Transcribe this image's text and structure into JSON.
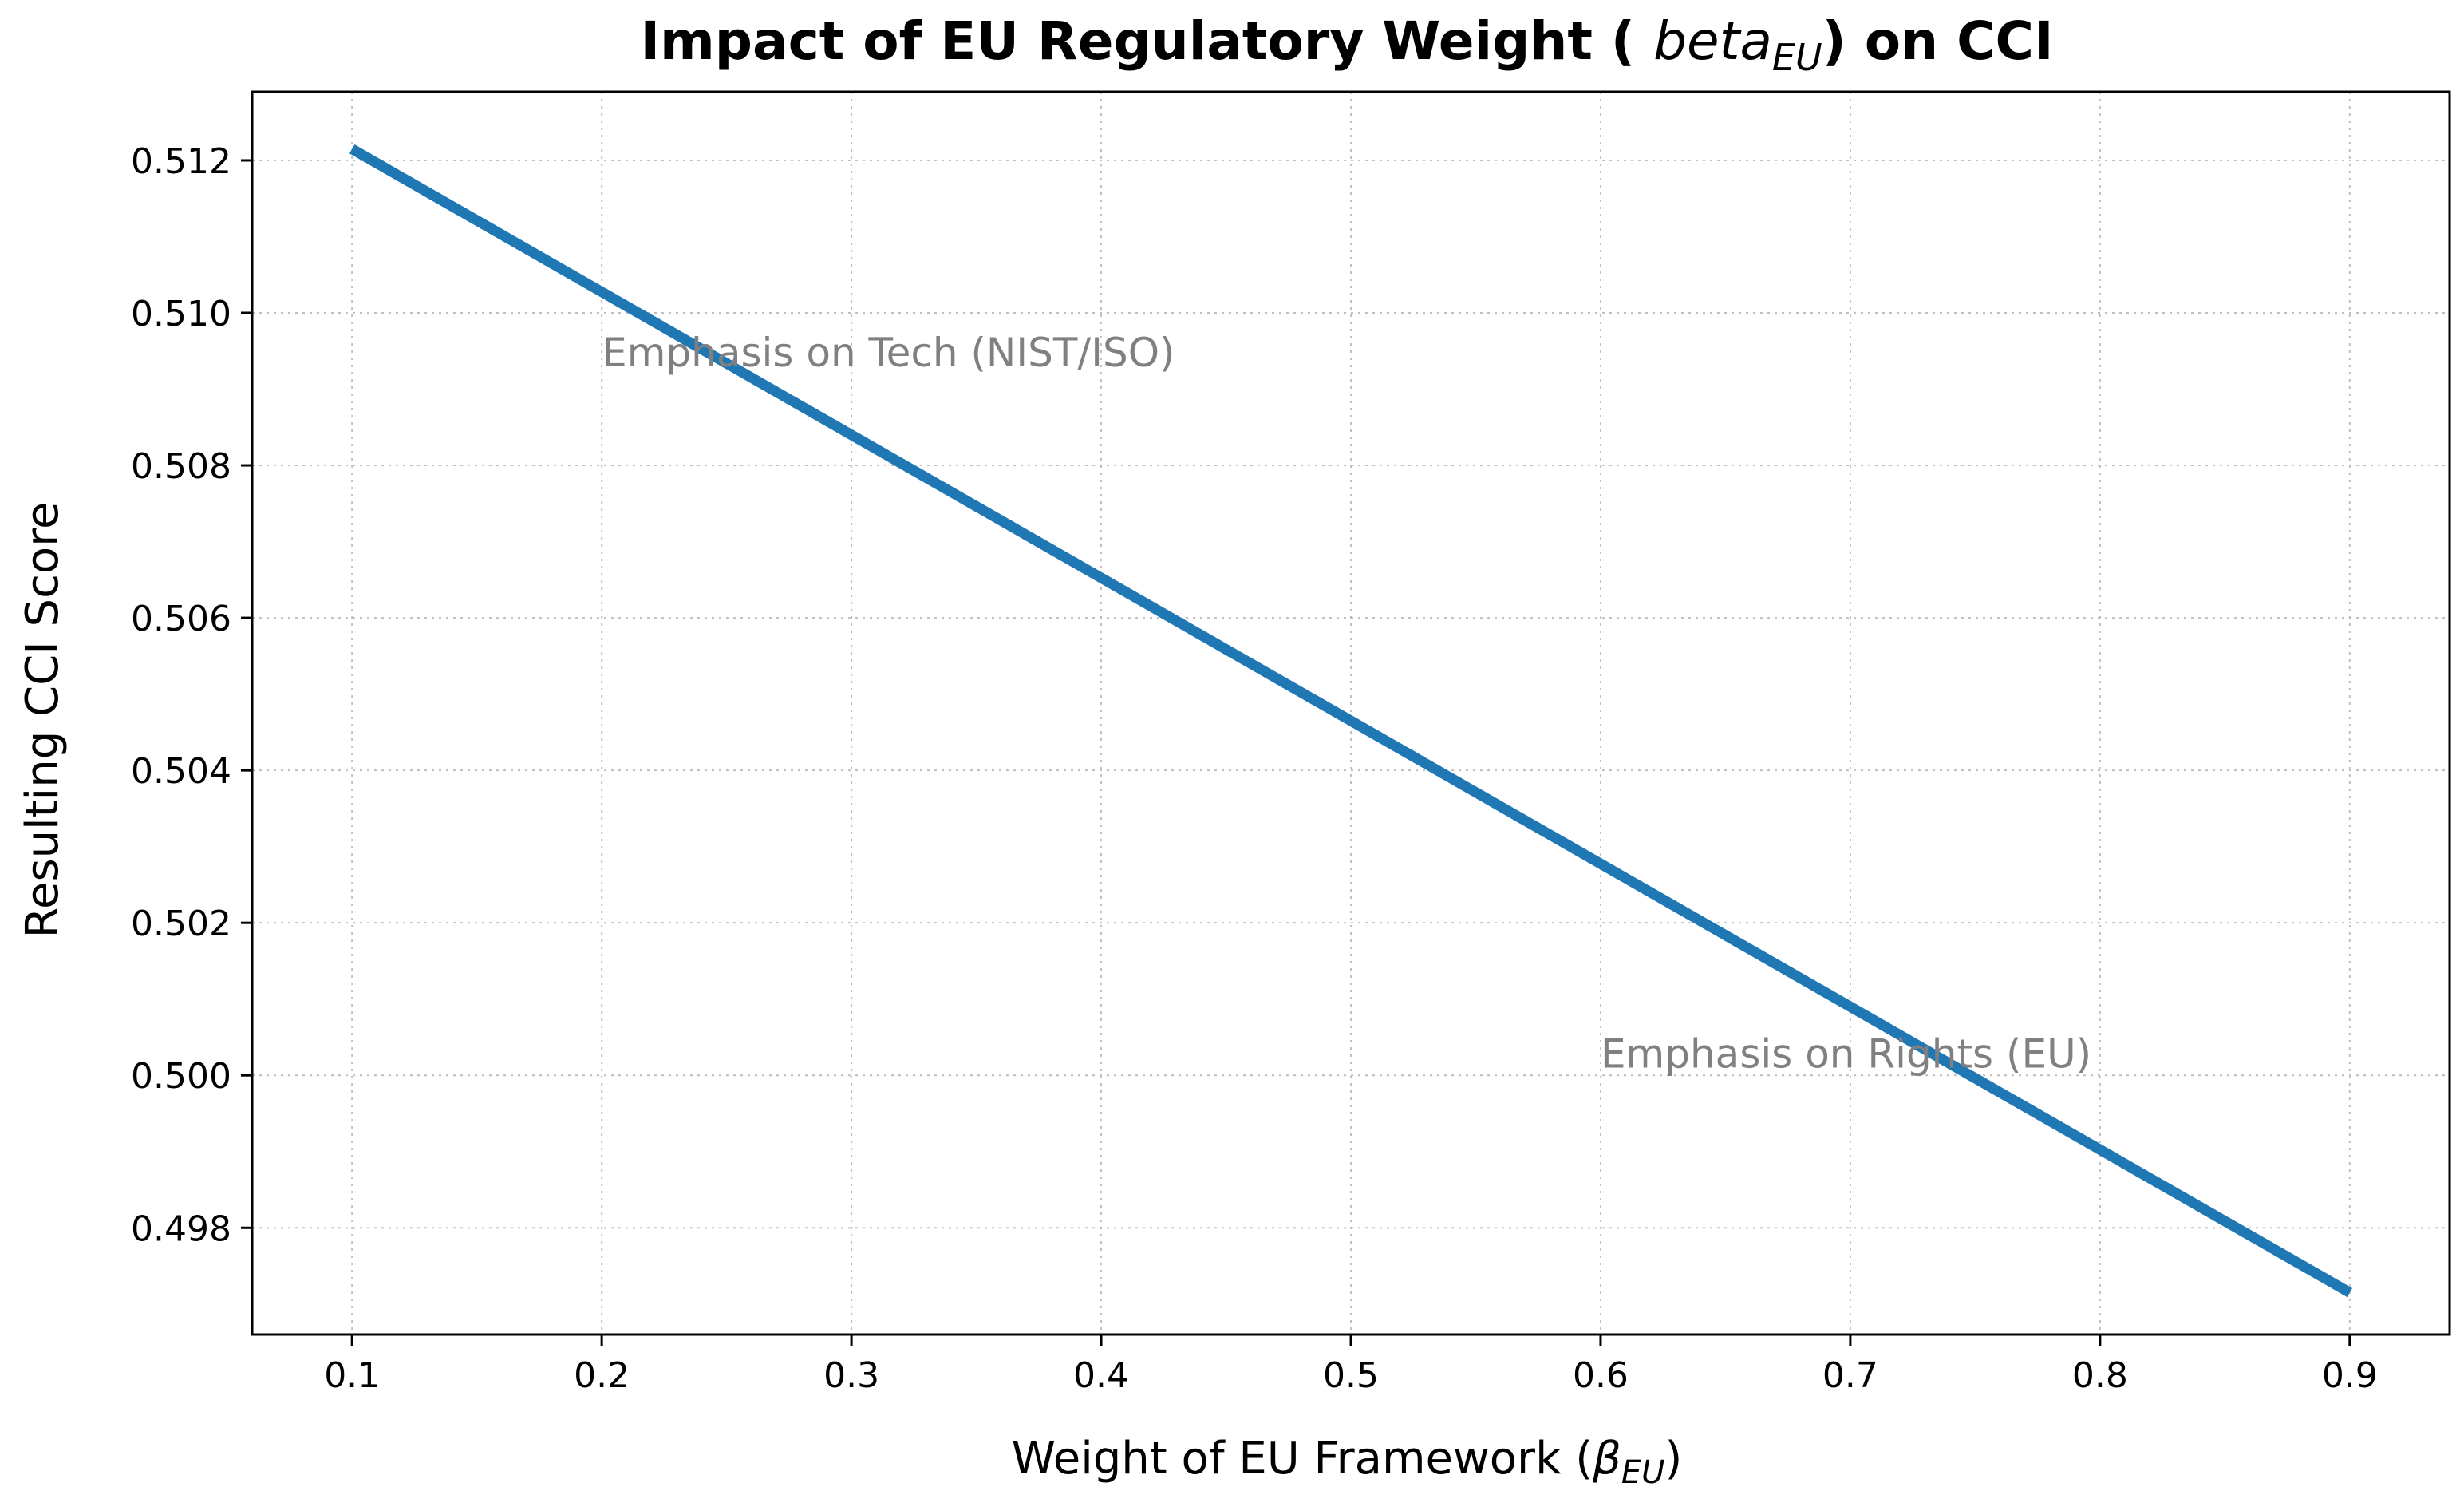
{
  "chart_data": {
    "type": "line",
    "title": {
      "prefix": "Impact of EU Regulatory Weight ( ",
      "math_base": "beta",
      "math_sub": "EU",
      "suffix": ") on CCI"
    },
    "xlabel": {
      "prefix": "Weight of EU Framework (",
      "math_base": "β",
      "math_sub": "EU",
      "suffix": ")"
    },
    "ylabel": "Resulting CCI Score",
    "xlim": [
      0.06,
      0.94
    ],
    "ylim": [
      0.4966,
      0.5129
    ],
    "x_ticks": [
      0.1,
      0.2,
      0.3,
      0.4,
      0.5,
      0.6,
      0.7,
      0.8,
      0.9
    ],
    "x_tick_labels": [
      "0.1",
      "0.2",
      "0.3",
      "0.4",
      "0.5",
      "0.6",
      "0.7",
      "0.8",
      "0.9"
    ],
    "y_ticks": [
      0.498,
      0.5,
      0.502,
      0.504,
      0.506,
      0.508,
      0.51,
      0.512
    ],
    "y_tick_labels": [
      "0.498",
      "0.500",
      "0.502",
      "0.504",
      "0.506",
      "0.508",
      "0.510",
      "0.512"
    ],
    "grid": true,
    "series": [
      {
        "color": "#1f77b4",
        "x": [
          0.1,
          0.9
        ],
        "y": [
          0.51215,
          0.49715
        ]
      }
    ],
    "annotations": [
      {
        "text": "Emphasis on Tech (NIST/ISO)",
        "x": 0.2,
        "y": 0.5093
      },
      {
        "text": "Emphasis on Rights (EU)",
        "x": 0.6,
        "y": 0.5001
      }
    ]
  }
}
